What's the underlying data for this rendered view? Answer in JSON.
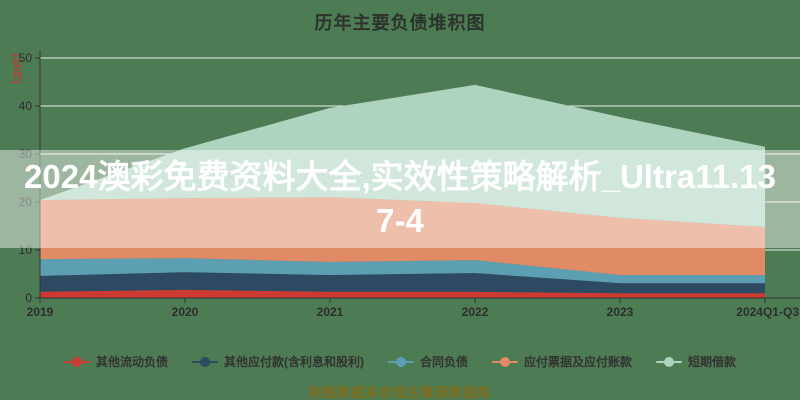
{
  "title": "历年主要负债堆积图",
  "y_axis": {
    "unit_label": "(亿元)",
    "tick_labels": [
      "0",
      "10",
      "20",
      "30",
      "40",
      "50"
    ]
  },
  "x_axis": {
    "tick_labels": [
      "2019",
      "2020",
      "2021",
      "2022",
      "2023",
      "2024Q1-Q3"
    ]
  },
  "watermark": {
    "text": "2024澳彩免费资料大全,实效性策略解析_Ultra11.137-4"
  },
  "footer": {
    "text": "制图数据来自恒生聚源数据库"
  },
  "colors": {
    "background": "#4d7b53",
    "title_text": "#2b332c",
    "axis_line": "#333333",
    "tick_label": "#2d2d2d",
    "gridline": "#ffffff",
    "watermark_overlay": "rgba(255,255,255,0.45)",
    "watermark_text": "#ffffff",
    "unit_label_text": "#c03a2d",
    "footer_text": "#7d6b1d"
  },
  "chart_data": {
    "type": "area",
    "stacked": true,
    "title": "历年主要负债堆积图",
    "categories": [
      "2019",
      "2020",
      "2021",
      "2022",
      "2023",
      "2024Q1-Q3"
    ],
    "series": [
      {
        "name": "其他流动负债",
        "color": "#ce3a31",
        "values": [
          1.3,
          1.7,
          1.3,
          1.3,
          1.0,
          1.0
        ]
      },
      {
        "name": "其他应付款(含利息和股利)",
        "color": "#2e4a63",
        "values": [
          3.3,
          3.7,
          3.5,
          3.9,
          2.1,
          2.1
        ]
      },
      {
        "name": "合同负债",
        "color": "#5d9fb2",
        "values": [
          3.5,
          2.9,
          2.7,
          2.7,
          1.7,
          1.7
        ]
      },
      {
        "name": "应付票据及应付账款",
        "color": "#e08a66",
        "values": [
          12.3,
          12.5,
          13.5,
          11.9,
          11.9,
          10.0
        ]
      },
      {
        "name": "短期借款",
        "color": "#aed3bf",
        "values": [
          0.0,
          10.4,
          18.6,
          24.6,
          21.0,
          16.7
        ]
      }
    ],
    "totals": [
      20.4,
      31.2,
      39.6,
      44.4,
      37.7,
      31.5
    ],
    "ylabel": "(亿元)",
    "ylim": [
      0,
      50
    ],
    "yticks": [
      0,
      10,
      20,
      30,
      40,
      50
    ],
    "grid": true,
    "legend_position": "bottom"
  }
}
